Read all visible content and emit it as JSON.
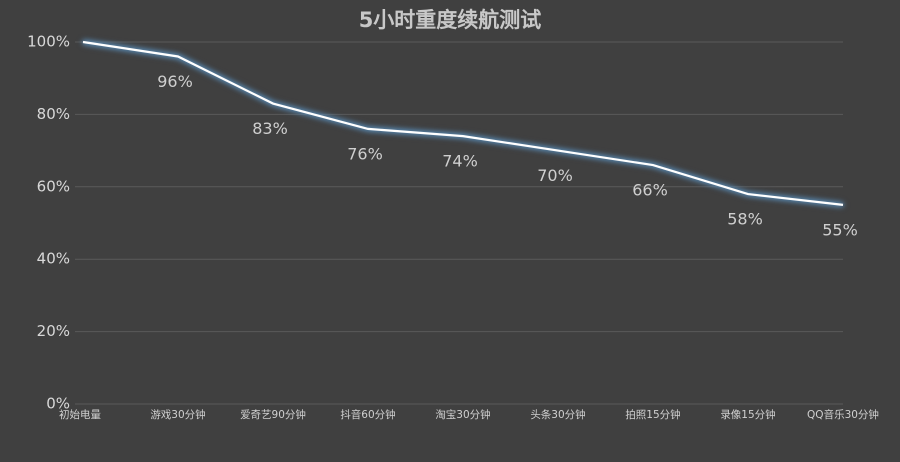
{
  "chart_data": {
    "type": "line",
    "title": "5小时重度续航测试",
    "categories": [
      "初始电量",
      "游戏30分钟",
      "爱奇艺90分钟",
      "抖音60分钟",
      "淘宝30分钟",
      "头条30分钟",
      "拍照15分钟",
      "录像15分钟",
      "QQ音乐30分钟"
    ],
    "values": [
      100,
      96,
      83,
      76,
      74,
      70,
      66,
      58,
      55
    ],
    "value_labels": [
      null,
      "96%",
      "83%",
      "76%",
      "74%",
      "70%",
      "66%",
      "58%",
      "55%"
    ],
    "color": "#ffffff",
    "ylim": [
      0,
      100
    ],
    "yticks": [
      {
        "value": 0,
        "label": "0%"
      },
      {
        "value": 20,
        "label": "20%"
      },
      {
        "value": 40,
        "label": "40%"
      },
      {
        "value": 60,
        "label": "60%"
      },
      {
        "value": 80,
        "label": "80%"
      },
      {
        "value": 100,
        "label": "100%"
      }
    ],
    "grid": true
  }
}
